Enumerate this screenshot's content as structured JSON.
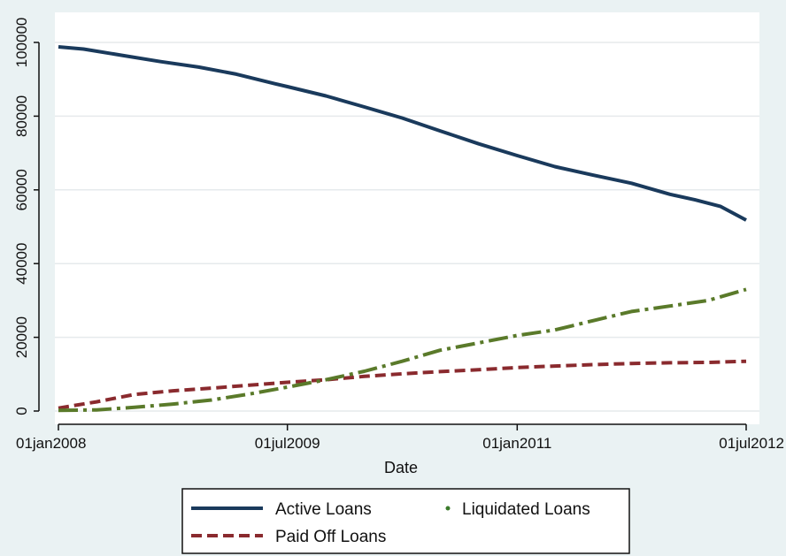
{
  "chart_data": {
    "type": "line",
    "title": "",
    "xlabel": "Date",
    "ylabel": "",
    "x_axis": {
      "type": "date",
      "range": [
        "2008-01-01",
        "2012-07-01"
      ],
      "ticks": [
        {
          "date": "2008-01-01",
          "label": "01jan2008"
        },
        {
          "date": "2009-07-01",
          "label": "01jul2009"
        },
        {
          "date": "2011-01-01",
          "label": "01jan2011"
        },
        {
          "date": "2012-07-01",
          "label": "01jul2012"
        }
      ]
    },
    "y_axis": {
      "range": [
        0,
        100000
      ],
      "ticks": [
        {
          "value": 0,
          "label": "0"
        },
        {
          "value": 20000,
          "label": "20000"
        },
        {
          "value": 40000,
          "label": "40000"
        },
        {
          "value": 60000,
          "label": "60000"
        },
        {
          "value": 80000,
          "label": "80000"
        },
        {
          "value": 100000,
          "label": "100000"
        }
      ]
    },
    "grid": true,
    "legend": {
      "placement": "bottom",
      "entries": [
        {
          "label": "Active Loans",
          "series": "Active Loans"
        },
        {
          "label": "Liquidated Loans",
          "series": "Liquidated Loans"
        },
        {
          "label": "Paid Off Loans",
          "series": "Paid Off Loans"
        }
      ]
    },
    "series": [
      {
        "name": "Active Loans",
        "color": "#1a3a5c",
        "style": "solid",
        "points": [
          [
            "2008-01-01",
            98800
          ],
          [
            "2008-03-01",
            98200
          ],
          [
            "2008-06-01",
            96500
          ],
          [
            "2008-09-01",
            94800
          ],
          [
            "2008-12-01",
            93300
          ],
          [
            "2009-03-01",
            91400
          ],
          [
            "2009-06-01",
            88800
          ],
          [
            "2009-07-01",
            88000
          ],
          [
            "2009-10-01",
            85500
          ],
          [
            "2010-01-01",
            82500
          ],
          [
            "2010-04-01",
            79500
          ],
          [
            "2010-07-01",
            76000
          ],
          [
            "2010-10-01",
            72500
          ],
          [
            "2011-01-01",
            69300
          ],
          [
            "2011-04-01",
            66300
          ],
          [
            "2011-07-01",
            64000
          ],
          [
            "2011-10-01",
            61800
          ],
          [
            "2012-01-01",
            58800
          ],
          [
            "2012-03-01",
            57300
          ],
          [
            "2012-05-01",
            55500
          ],
          [
            "2012-07-01",
            51800
          ]
        ]
      },
      {
        "name": "Liquidated Loans",
        "color": "#5a7a2a",
        "style": "dash-dot",
        "points": [
          [
            "2008-01-01",
            200
          ],
          [
            "2008-04-01",
            300
          ],
          [
            "2008-07-01",
            1000
          ],
          [
            "2008-10-01",
            1900
          ],
          [
            "2009-01-01",
            3000
          ],
          [
            "2009-04-01",
            4600
          ],
          [
            "2009-07-01",
            6500
          ],
          [
            "2009-10-01",
            8500
          ],
          [
            "2010-01-01",
            10800
          ],
          [
            "2010-04-01",
            13500
          ],
          [
            "2010-07-01",
            16500
          ],
          [
            "2010-10-01",
            18500
          ],
          [
            "2011-01-01",
            20500
          ],
          [
            "2011-04-01",
            22000
          ],
          [
            "2011-07-01",
            24500
          ],
          [
            "2011-10-01",
            27000
          ],
          [
            "2012-01-01",
            28500
          ],
          [
            "2012-04-01",
            30000
          ],
          [
            "2012-07-01",
            33000
          ]
        ]
      },
      {
        "name": "Paid Off Loans",
        "color": "#8a2a2e",
        "style": "dash",
        "points": [
          [
            "2008-01-01",
            800
          ],
          [
            "2008-04-01",
            2500
          ],
          [
            "2008-07-01",
            4500
          ],
          [
            "2008-10-01",
            5500
          ],
          [
            "2009-01-01",
            6200
          ],
          [
            "2009-04-01",
            7000
          ],
          [
            "2009-07-01",
            7800
          ],
          [
            "2009-10-01",
            8500
          ],
          [
            "2010-01-01",
            9400
          ],
          [
            "2010-04-01",
            10100
          ],
          [
            "2010-07-01",
            10700
          ],
          [
            "2010-10-01",
            11200
          ],
          [
            "2011-01-01",
            11800
          ],
          [
            "2011-04-01",
            12200
          ],
          [
            "2011-07-01",
            12600
          ],
          [
            "2011-10-01",
            12900
          ],
          [
            "2012-01-01",
            13100
          ],
          [
            "2012-04-01",
            13200
          ],
          [
            "2012-07-01",
            13500
          ]
        ]
      }
    ]
  }
}
